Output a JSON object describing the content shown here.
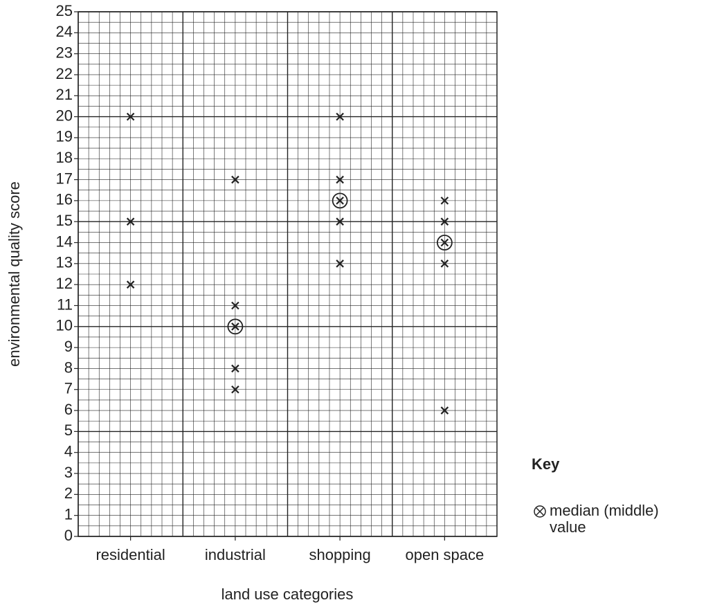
{
  "chart_data": {
    "type": "dispersion",
    "x_label": "land use categories",
    "y_label": "environmental quality score",
    "categories": [
      "residential",
      "industrial",
      "shopping",
      "open space"
    ],
    "values": [
      [
        20,
        15,
        12
      ],
      [
        17,
        11,
        10,
        8,
        7
      ],
      [
        20,
        17,
        16,
        15,
        13
      ],
      [
        16,
        15,
        14,
        13,
        6
      ]
    ],
    "medians": [
      null,
      10,
      16,
      14
    ],
    "ylim": [
      0,
      25
    ],
    "yticks": [
      0,
      1,
      2,
      3,
      4,
      5,
      6,
      7,
      8,
      9,
      10,
      11,
      12,
      13,
      14,
      15,
      16,
      17,
      18,
      19,
      20,
      21,
      22,
      23,
      24,
      25
    ],
    "grid": true,
    "key_title": "Key",
    "key_label": "median (middle) value"
  }
}
